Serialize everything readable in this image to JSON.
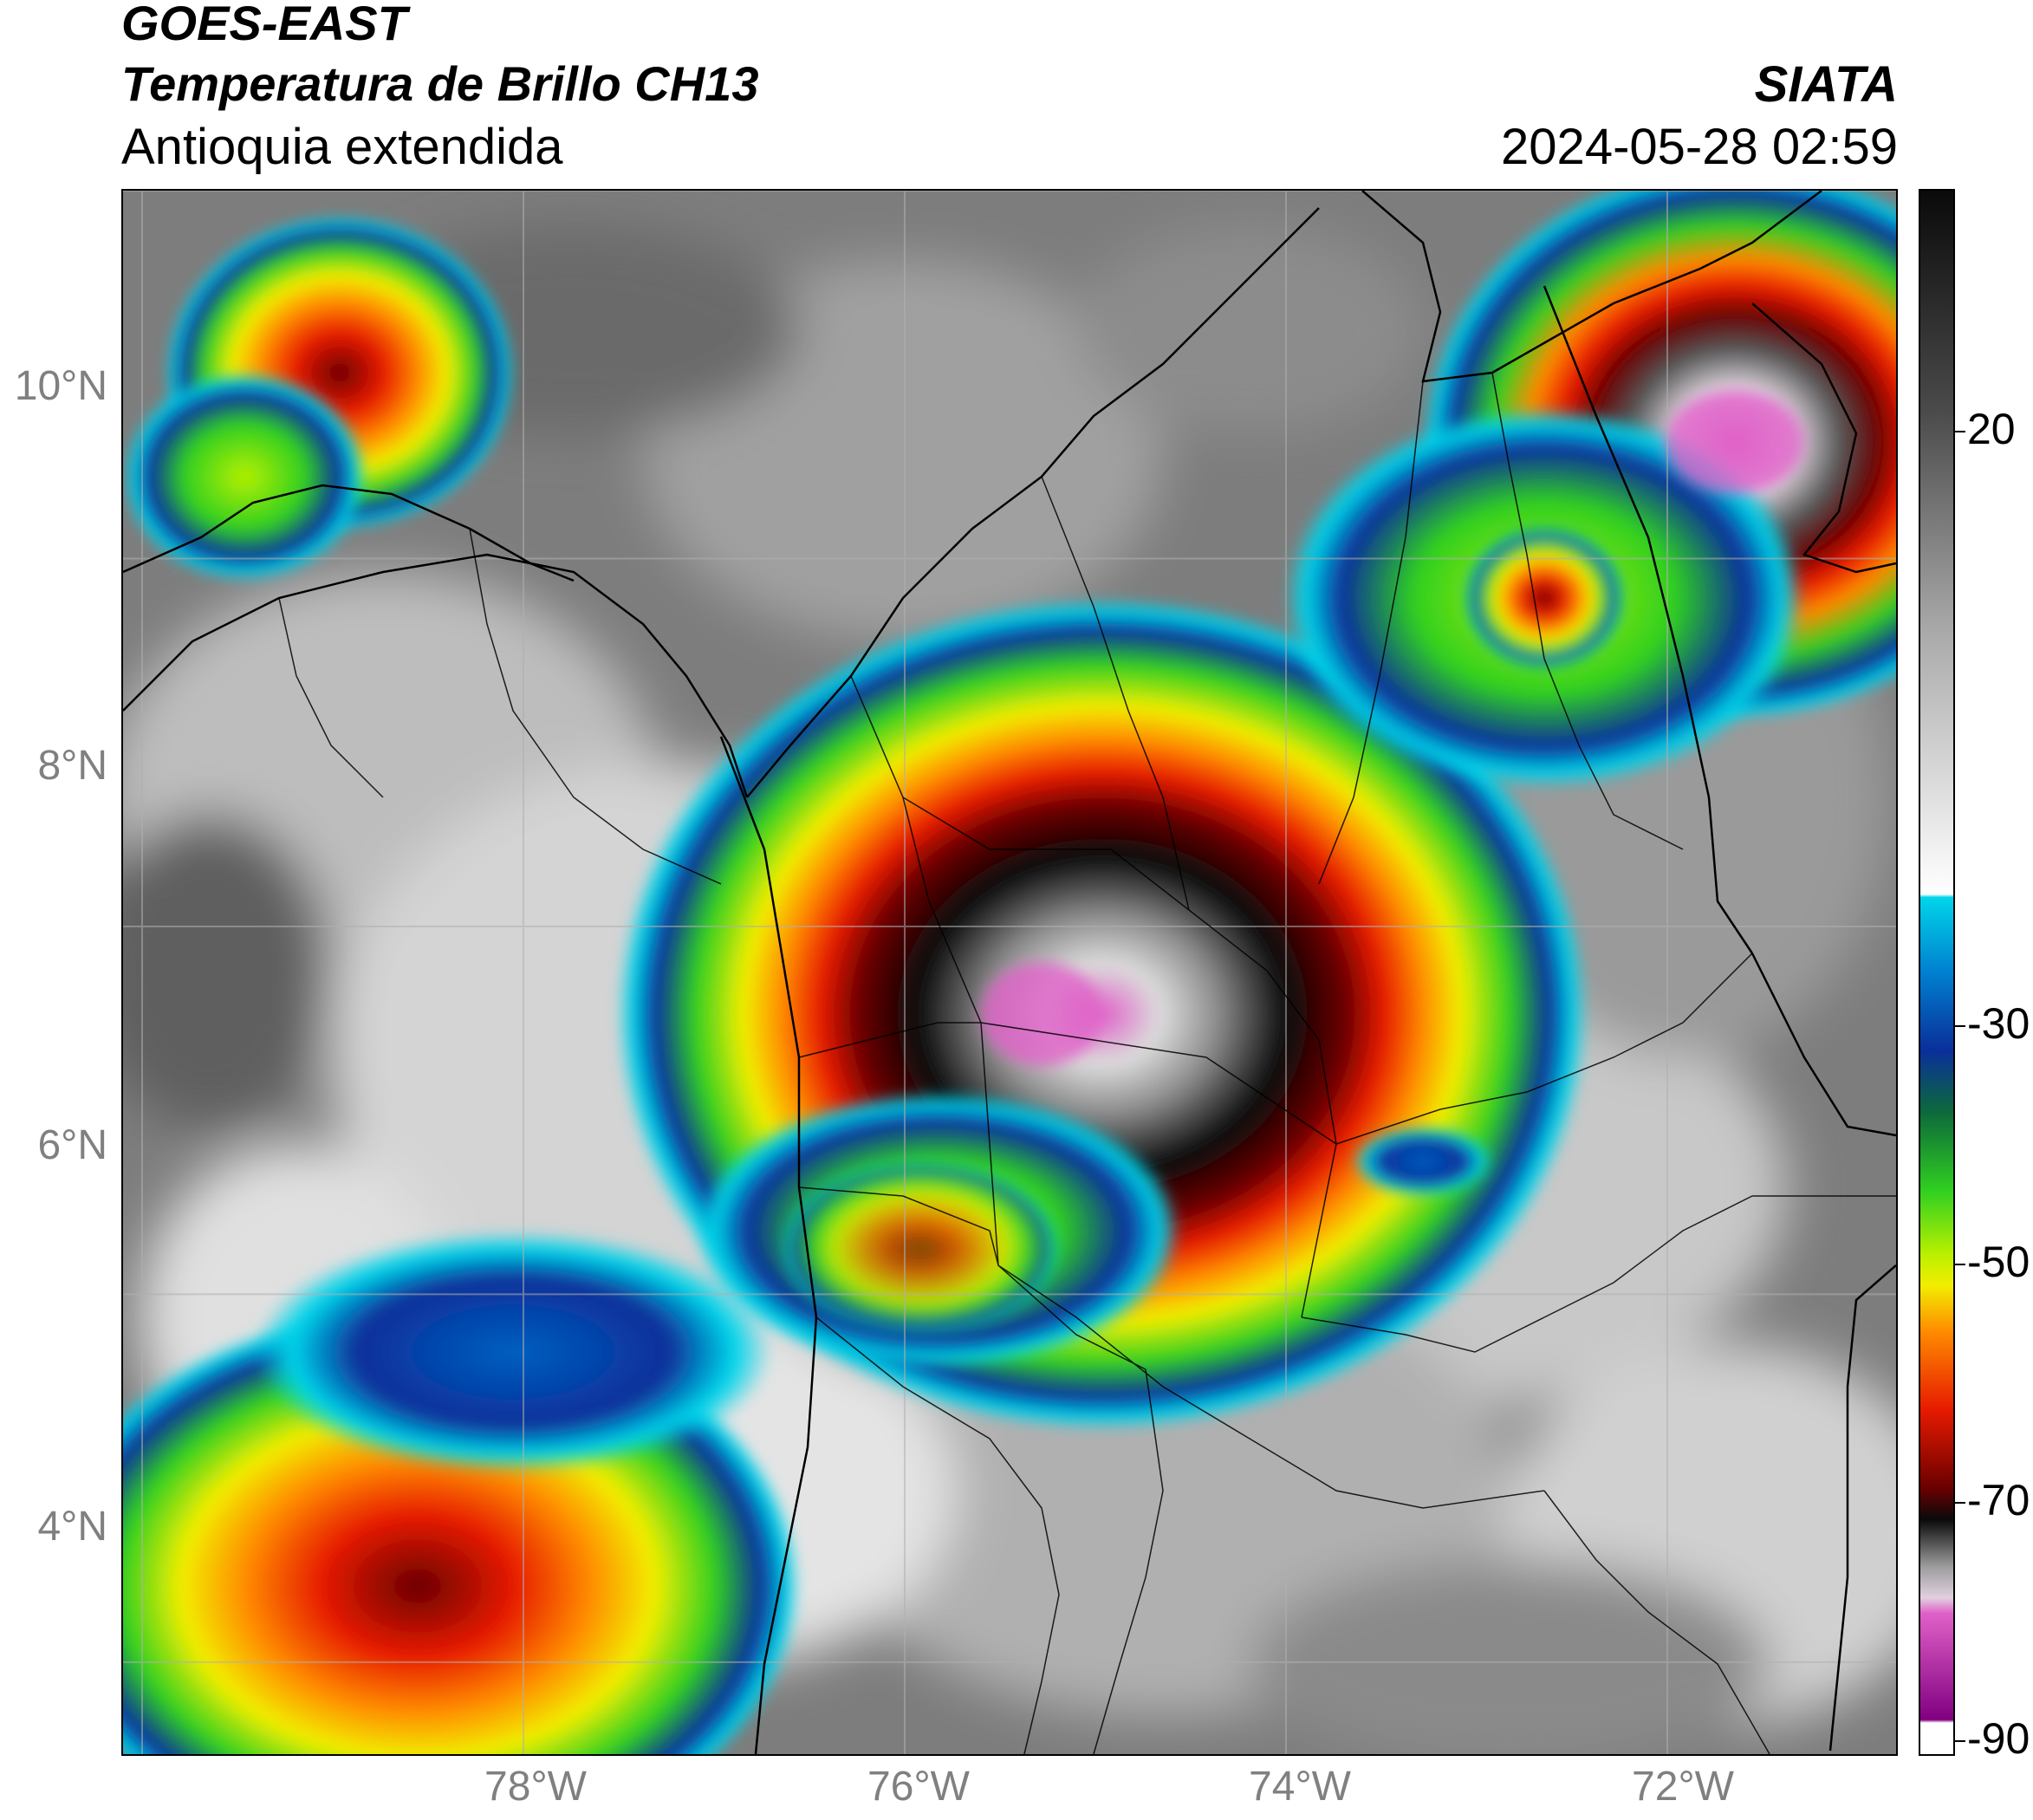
{
  "header": {
    "satellite": "GOES-EAST",
    "product": "Temperatura de Brillo CH13",
    "region": "Antioquia extendida",
    "organization": "SIATA",
    "timestamp": "2024-05-28 02:59"
  },
  "axes": {
    "lat_ticks": [
      "10°N",
      "8°N",
      "6°N",
      "4°N"
    ],
    "lon_ticks": [
      "78°W",
      "76°W",
      "74°W",
      "72°W"
    ]
  },
  "colorbar": {
    "tick_labels": [
      "20",
      "-30",
      "-50",
      "-70",
      "-90"
    ],
    "colors": {
      "warm_gray": "#4a4a4a",
      "cold_cyan": "#00d5ea",
      "blue": "#0a2f9a",
      "green": "#30d020",
      "yellow": "#f2ee00",
      "orange": "#ff8a00",
      "red": "#e61a00",
      "dark_red": "#6a0000",
      "black": "#0a0a0a",
      "pink": "#e060c8",
      "purple": "#800080"
    }
  },
  "map": {
    "lon_range": [
      -80.1,
      -70.8
    ],
    "lat_range": [
      2.5,
      11.0
    ],
    "features": [
      "country-borders",
      "department-borders",
      "coastline",
      "gridlines"
    ]
  }
}
